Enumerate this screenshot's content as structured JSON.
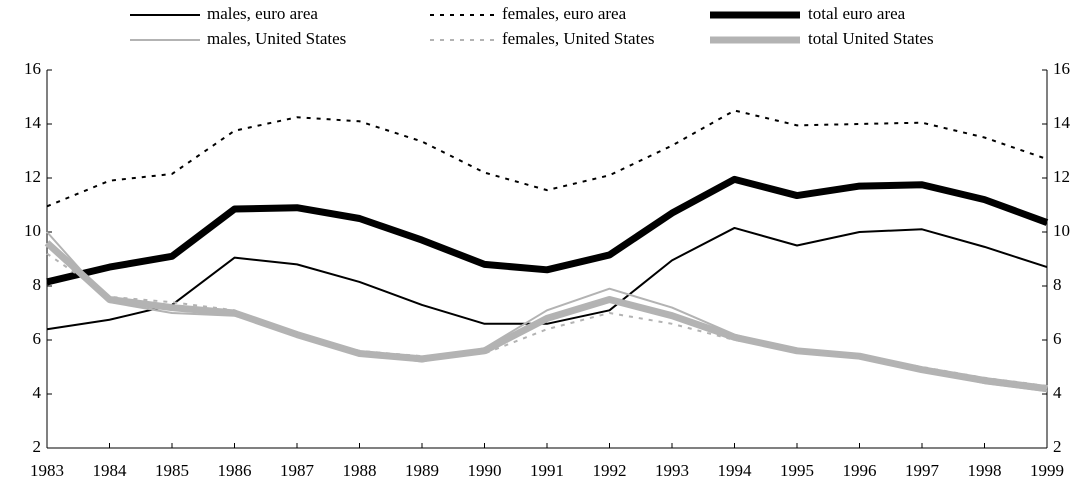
{
  "chart_data": {
    "type": "line",
    "categories": [
      "1983",
      "1984",
      "1985",
      "1986",
      "1987",
      "1988",
      "1989",
      "1990",
      "1991",
      "1992",
      "1993",
      "1994",
      "1995",
      "1996",
      "1997",
      "1998",
      "1999"
    ],
    "ylim": [
      2,
      16
    ],
    "yticks": [
      2,
      4,
      6,
      8,
      10,
      12,
      14,
      16
    ],
    "series": [
      {
        "name": "males, euro area",
        "color": "#000000",
        "width": 2,
        "dash": false,
        "values": [
          6.4,
          6.75,
          7.3,
          9.05,
          8.8,
          8.15,
          7.3,
          6.6,
          6.6,
          7.1,
          8.95,
          10.15,
          9.5,
          10.0,
          10.1,
          9.45,
          8.7
        ]
      },
      {
        "name": "females, euro area",
        "color": "#000000",
        "width": 2,
        "dash": true,
        "values": [
          10.95,
          11.9,
          12.15,
          13.75,
          14.25,
          14.1,
          13.35,
          12.2,
          11.55,
          12.1,
          13.2,
          14.5,
          13.95,
          14.0,
          14.05,
          13.5,
          12.7
        ]
      },
      {
        "name": "total euro area",
        "color": "#000000",
        "width": 7,
        "dash": false,
        "values": [
          8.15,
          8.7,
          9.1,
          10.85,
          10.9,
          10.5,
          9.7,
          8.8,
          8.6,
          9.15,
          10.7,
          11.95,
          11.35,
          11.7,
          11.75,
          11.2,
          10.35
        ]
      },
      {
        "name": "males, United States",
        "color": "#b3b3b3",
        "width": 2,
        "dash": false,
        "values": [
          10.0,
          7.4,
          7.0,
          6.9,
          6.2,
          5.5,
          5.2,
          5.7,
          7.1,
          7.9,
          7.2,
          6.2,
          5.6,
          5.4,
          4.9,
          4.4,
          4.1
        ]
      },
      {
        "name": "females, United States",
        "color": "#b3b3b3",
        "width": 2,
        "dash": true,
        "values": [
          9.2,
          7.6,
          7.4,
          7.1,
          6.2,
          5.6,
          5.4,
          5.5,
          6.4,
          7.0,
          6.6,
          6.0,
          5.6,
          5.4,
          5.0,
          4.6,
          4.3
        ]
      },
      {
        "name": "total United States",
        "color": "#b3b3b3",
        "width": 7,
        "dash": false,
        "values": [
          9.6,
          7.5,
          7.2,
          7.0,
          6.2,
          5.5,
          5.3,
          5.6,
          6.8,
          7.5,
          6.9,
          6.1,
          5.6,
          5.4,
          4.9,
          4.5,
          4.2
        ]
      }
    ]
  }
}
